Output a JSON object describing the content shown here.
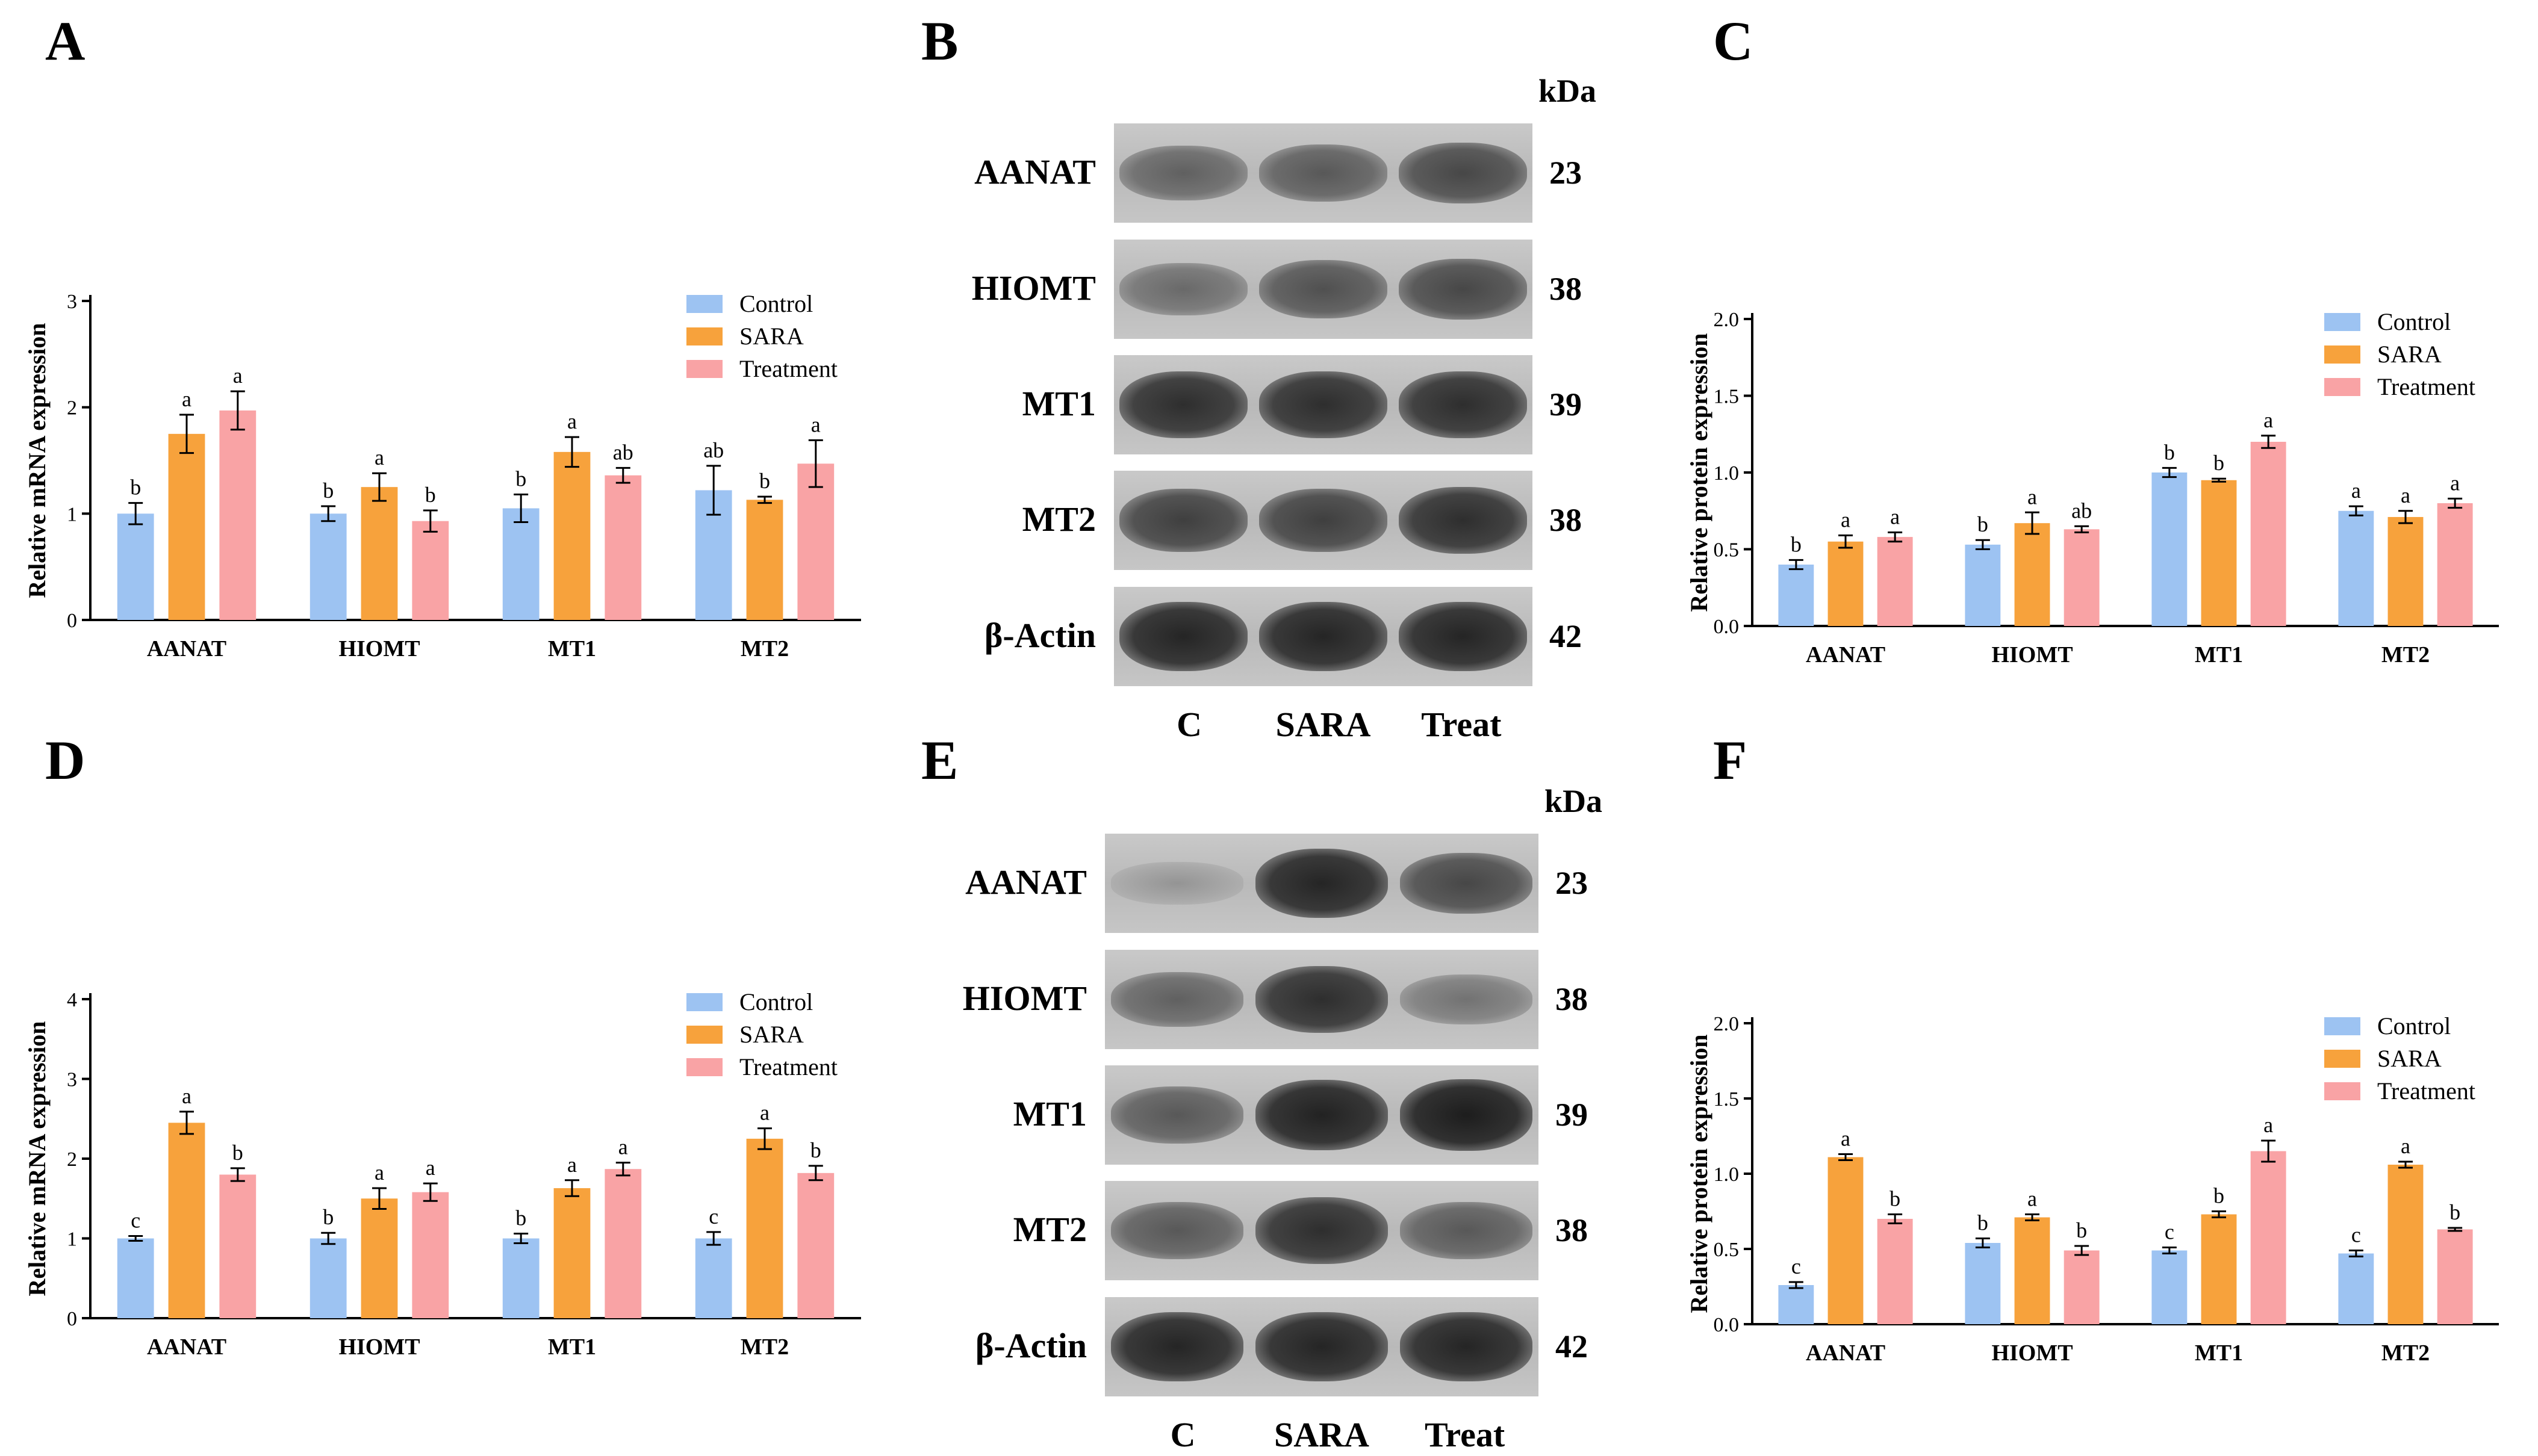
{
  "colors": {
    "control": "#9dc3f2",
    "sara": "#f7a23c",
    "treatment": "#f9a3a5"
  },
  "panels": {
    "A": {
      "letter": "A"
    },
    "B": {
      "letter": "B"
    },
    "C": {
      "letter": "C"
    },
    "D": {
      "letter": "D"
    },
    "E": {
      "letter": "E"
    },
    "F": {
      "letter": "F"
    }
  },
  "chart_data": [
    {
      "panel": "A",
      "type": "bar",
      "ylabel": "Relative mRNA expression",
      "ylim": [
        0,
        3
      ],
      "yticks": [
        "0",
        "1",
        "2",
        "3"
      ],
      "categories": [
        "AANAT",
        "HIOMT",
        "MT1",
        "MT2"
      ],
      "series": [
        {
          "name": "Control",
          "values": [
            1.0,
            1.0,
            1.05,
            1.22
          ],
          "errors": [
            0.1,
            0.07,
            0.13,
            0.23
          ],
          "letters": [
            "b",
            "b",
            "b",
            "ab"
          ]
        },
        {
          "name": "SARA",
          "values": [
            1.75,
            1.25,
            1.58,
            1.13
          ],
          "errors": [
            0.18,
            0.13,
            0.14,
            0.03
          ],
          "letters": [
            "a",
            "a",
            "a",
            "b"
          ]
        },
        {
          "name": "Treatment",
          "values": [
            1.97,
            0.93,
            1.36,
            1.47
          ],
          "errors": [
            0.18,
            0.1,
            0.07,
            0.22
          ],
          "letters": [
            "a",
            "b",
            "ab",
            "a"
          ]
        }
      ],
      "legend": "top-right"
    },
    {
      "panel": "C",
      "type": "bar",
      "ylabel": "Relative protein expression",
      "ylim": [
        0,
        2
      ],
      "yticks": [
        "0.0",
        "0.5",
        "1.0",
        "1.5",
        "2.0"
      ],
      "categories": [
        "AANAT",
        "HIOMT",
        "MT1",
        "MT2"
      ],
      "series": [
        {
          "name": "Control",
          "values": [
            0.4,
            0.53,
            1.0,
            0.75
          ],
          "errors": [
            0.03,
            0.03,
            0.03,
            0.03
          ],
          "letters": [
            "b",
            "b",
            "b",
            "a"
          ]
        },
        {
          "name": "SARA",
          "values": [
            0.55,
            0.67,
            0.95,
            0.71
          ],
          "errors": [
            0.04,
            0.07,
            0.01,
            0.04
          ],
          "letters": [
            "a",
            "a",
            "b",
            "a"
          ]
        },
        {
          "name": "Treatment",
          "values": [
            0.58,
            0.63,
            1.2,
            0.8
          ],
          "errors": [
            0.03,
            0.02,
            0.04,
            0.03
          ],
          "letters": [
            "a",
            "ab",
            "a",
            "a"
          ]
        }
      ],
      "legend": "top-right"
    },
    {
      "panel": "D",
      "type": "bar",
      "ylabel": "Relative mRNA expression",
      "ylim": [
        0,
        4
      ],
      "yticks": [
        "0",
        "1",
        "2",
        "3",
        "4"
      ],
      "categories": [
        "AANAT",
        "HIOMT",
        "MT1",
        "MT2"
      ],
      "series": [
        {
          "name": "Control",
          "values": [
            1.0,
            1.0,
            1.0,
            1.0
          ],
          "errors": [
            0.03,
            0.07,
            0.06,
            0.08
          ],
          "letters": [
            "c",
            "b",
            "b",
            "c"
          ]
        },
        {
          "name": "SARA",
          "values": [
            2.45,
            1.5,
            1.63,
            2.25
          ],
          "errors": [
            0.14,
            0.13,
            0.1,
            0.13
          ],
          "letters": [
            "a",
            "a",
            "a",
            "a"
          ]
        },
        {
          "name": "Treatment",
          "values": [
            1.8,
            1.58,
            1.87,
            1.82
          ],
          "errors": [
            0.08,
            0.11,
            0.08,
            0.09
          ],
          "letters": [
            "b",
            "a",
            "a",
            "b"
          ]
        }
      ],
      "legend": "top-right"
    },
    {
      "panel": "F",
      "type": "bar",
      "ylabel": "Relative protein expression",
      "ylim": [
        0,
        2
      ],
      "yticks": [
        "0.0",
        "0.5",
        "1.0",
        "1.5",
        "2.0"
      ],
      "categories": [
        "AANAT",
        "HIOMT",
        "MT1",
        "MT2"
      ],
      "series": [
        {
          "name": "Control",
          "values": [
            0.26,
            0.54,
            0.49,
            0.47
          ],
          "errors": [
            0.02,
            0.03,
            0.02,
            0.02
          ],
          "letters": [
            "c",
            "b",
            "c",
            "c"
          ]
        },
        {
          "name": "SARA",
          "values": [
            1.11,
            0.71,
            0.73,
            1.06
          ],
          "errors": [
            0.02,
            0.02,
            0.02,
            0.02
          ],
          "letters": [
            "a",
            "a",
            "b",
            "a"
          ]
        },
        {
          "name": "Treatment",
          "values": [
            0.7,
            0.49,
            1.15,
            0.63
          ],
          "errors": [
            0.03,
            0.03,
            0.07,
            0.01
          ],
          "letters": [
            "b",
            "b",
            "a",
            "b"
          ]
        }
      ],
      "legend": "top-right"
    }
  ],
  "blots": {
    "B": {
      "unit_label": "kDa",
      "lanes": [
        "C",
        "SARA",
        "Treat"
      ],
      "rows": [
        {
          "protein": "AANAT",
          "kda": "23",
          "intensity": [
            0.55,
            0.6,
            0.7
          ]
        },
        {
          "protein": "HIOMT",
          "kda": "38",
          "intensity": [
            0.5,
            0.65,
            0.7
          ]
        },
        {
          "protein": "MT1",
          "kda": "39",
          "intensity": [
            0.85,
            0.85,
            0.85
          ]
        },
        {
          "protein": "MT2",
          "kda": "38",
          "intensity": [
            0.75,
            0.75,
            0.85
          ]
        },
        {
          "protein": "β-Actin",
          "kda": "42",
          "intensity": [
            0.9,
            0.9,
            0.9
          ]
        }
      ]
    },
    "E": {
      "unit_label": "kDa",
      "lanes": [
        "C",
        "SARA",
        "Treat"
      ],
      "rows": [
        {
          "protein": "AANAT",
          "kda": "23",
          "intensity": [
            0.25,
            0.9,
            0.7
          ]
        },
        {
          "protein": "HIOMT",
          "kda": "38",
          "intensity": [
            0.55,
            0.85,
            0.45
          ]
        },
        {
          "protein": "MT1",
          "kda": "39",
          "intensity": [
            0.6,
            0.92,
            0.95
          ]
        },
        {
          "protein": "MT2",
          "kda": "38",
          "intensity": [
            0.6,
            0.85,
            0.6
          ]
        },
        {
          "protein": "β-Actin",
          "kda": "42",
          "intensity": [
            0.9,
            0.9,
            0.9
          ]
        }
      ]
    }
  }
}
